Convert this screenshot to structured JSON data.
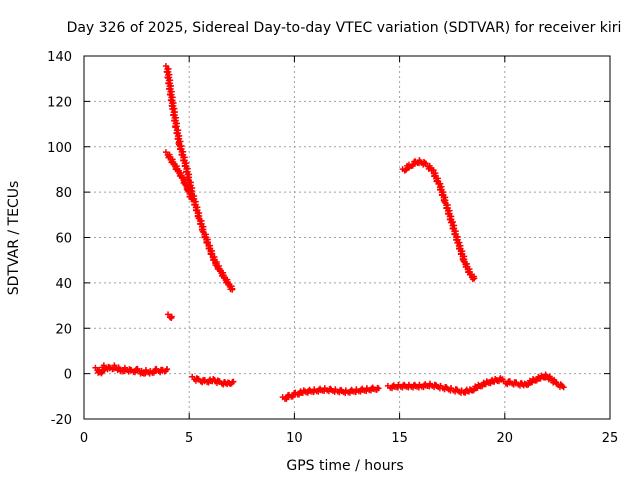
{
  "chart_data": {
    "type": "scatter",
    "title": "Day 326 of 2025, Sidereal Day-to-day VTEC variation (SDTVAR) for receiver kiri",
    "xlabel": "GPS time / hours",
    "ylabel": "SDTVAR / TECUs",
    "xlim": [
      0,
      25
    ],
    "ylim": [
      -20,
      140
    ],
    "xticks": [
      0,
      5,
      10,
      15,
      20,
      25
    ],
    "yticks": [
      -20,
      0,
      20,
      40,
      60,
      80,
      100,
      120,
      140
    ],
    "grid": true,
    "marker": "plus",
    "color": "#ff0000",
    "series": [
      {
        "name": "segment-1",
        "points": [
          [
            0.6,
            2
          ],
          [
            0.8,
            0
          ],
          [
            1.0,
            3
          ],
          [
            1.3,
            2
          ],
          [
            1.5,
            3
          ],
          [
            1.8,
            1
          ],
          [
            2.0,
            2
          ],
          [
            2.3,
            1
          ],
          [
            2.6,
            1.5
          ],
          [
            2.8,
            0
          ],
          [
            3.0,
            1
          ],
          [
            3.2,
            0.5
          ],
          [
            3.5,
            1.5
          ],
          [
            3.8,
            1
          ],
          [
            3.95,
            2
          ]
        ]
      },
      {
        "name": "segment-2",
        "points": [
          [
            3.95,
            135
          ],
          [
            4.1,
            125
          ],
          [
            4.25,
            116
          ],
          [
            4.4,
            108
          ],
          [
            4.55,
            101
          ],
          [
            4.7,
            96
          ],
          [
            4.85,
            91
          ],
          [
            5.0,
            85
          ],
          [
            5.15,
            79
          ],
          [
            5.3,
            74
          ],
          [
            5.5,
            68
          ],
          [
            5.7,
            62
          ],
          [
            5.9,
            57
          ],
          [
            6.1,
            52
          ],
          [
            6.3,
            48
          ],
          [
            6.5,
            45
          ],
          [
            6.7,
            42
          ],
          [
            6.9,
            39
          ],
          [
            7.05,
            37
          ]
        ]
      },
      {
        "name": "segment-3",
        "points": [
          [
            3.95,
            97
          ],
          [
            4.1,
            95
          ],
          [
            4.3,
            92
          ],
          [
            4.5,
            89
          ],
          [
            4.7,
            86
          ],
          [
            4.85,
            83
          ],
          [
            5.0,
            80
          ],
          [
            5.1,
            77
          ]
        ]
      },
      {
        "name": "segment-4",
        "points": [
          [
            4.05,
            25.5
          ],
          [
            4.15,
            24.5
          ]
        ]
      },
      {
        "name": "segment-5",
        "points": [
          [
            5.2,
            -2
          ],
          [
            5.5,
            -3
          ],
          [
            5.8,
            -3.5
          ],
          [
            6.2,
            -3
          ],
          [
            6.5,
            -4
          ],
          [
            6.9,
            -4.5
          ],
          [
            7.1,
            -3.5
          ]
        ]
      },
      {
        "name": "segment-6",
        "points": [
          [
            9.5,
            -11
          ],
          [
            9.8,
            -10
          ],
          [
            10.1,
            -9
          ],
          [
            10.5,
            -8
          ],
          [
            11.0,
            -7.5
          ],
          [
            11.5,
            -7
          ],
          [
            12.0,
            -7.5
          ],
          [
            12.5,
            -8
          ],
          [
            13.0,
            -7.5
          ],
          [
            13.5,
            -7
          ],
          [
            14.0,
            -6.5
          ]
        ]
      },
      {
        "name": "segment-7",
        "points": [
          [
            15.2,
            89.5
          ],
          [
            15.5,
            91.5
          ],
          [
            15.8,
            93
          ],
          [
            16.0,
            93.5
          ],
          [
            16.3,
            92
          ],
          [
            16.6,
            89
          ],
          [
            16.9,
            83
          ],
          [
            17.2,
            75
          ],
          [
            17.5,
            66
          ],
          [
            17.8,
            57
          ],
          [
            18.1,
            49
          ],
          [
            18.4,
            43
          ],
          [
            18.55,
            42
          ]
        ]
      },
      {
        "name": "segment-8",
        "points": [
          [
            14.5,
            -6
          ],
          [
            15.0,
            -5.5
          ],
          [
            15.5,
            -5.5
          ],
          [
            16.0,
            -5.5
          ],
          [
            16.5,
            -5
          ],
          [
            17.0,
            -6
          ],
          [
            17.5,
            -7
          ],
          [
            18.0,
            -8
          ],
          [
            18.4,
            -7.5
          ],
          [
            18.8,
            -5.5
          ],
          [
            19.2,
            -4
          ],
          [
            19.6,
            -3
          ],
          [
            19.9,
            -2.5
          ]
        ]
      },
      {
        "name": "segment-9",
        "points": [
          [
            20.0,
            -4
          ],
          [
            20.3,
            -4
          ],
          [
            20.6,
            -4.5
          ],
          [
            21.0,
            -5
          ],
          [
            21.4,
            -3
          ],
          [
            21.8,
            -1.5
          ],
          [
            22.0,
            -1
          ],
          [
            22.2,
            -2.5
          ],
          [
            22.5,
            -4.5
          ],
          [
            22.8,
            -6
          ]
        ]
      }
    ]
  }
}
